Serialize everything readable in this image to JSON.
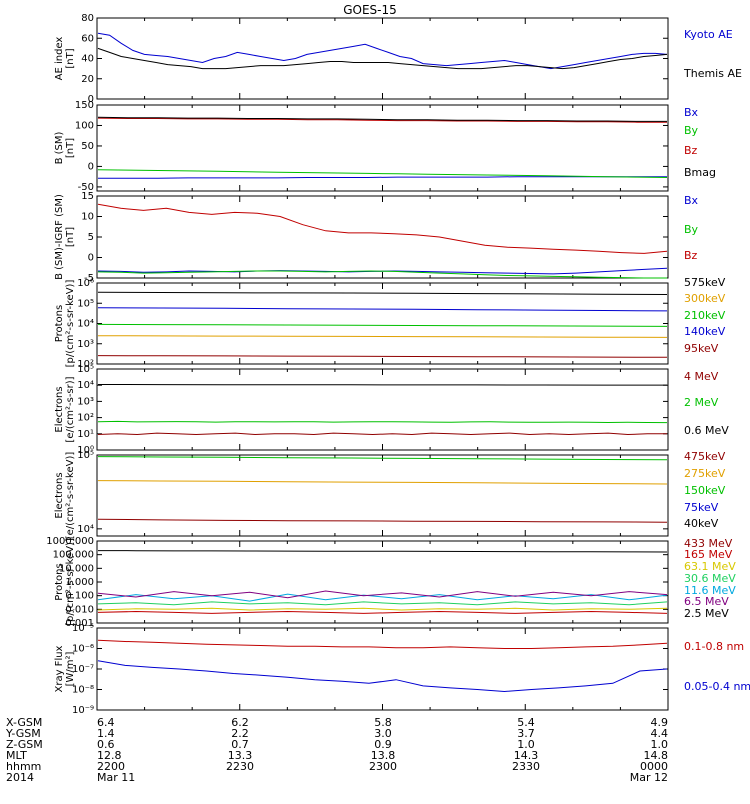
{
  "title": "GOES-15",
  "colors": {
    "black": "#000000",
    "blue": "#0000d0",
    "green": "#00c000",
    "red": "#c00000",
    "orange": "#e0a000",
    "yellow": "#d8c800",
    "cyan": "#00a8e0",
    "purple": "#800080",
    "lightgreen": "#20d060",
    "darkred": "#900000"
  },
  "chart_data": [
    {
      "type": "line",
      "ylabel": "AE index\n[nT]",
      "ylim": [
        0,
        80
      ],
      "yticks": [
        "0",
        "20",
        "40",
        "60",
        "80"
      ],
      "yscale": "linear",
      "series": [
        {
          "name": "Kyoto AE",
          "color": "blue",
          "values": [
            65,
            63,
            55,
            48,
            44,
            43,
            42,
            40,
            38,
            36,
            40,
            42,
            46,
            44,
            42,
            40,
            38,
            40,
            44,
            46,
            48,
            50,
            52,
            54,
            50,
            46,
            42,
            40,
            35,
            34,
            33,
            34,
            35,
            36,
            37,
            38,
            36,
            34,
            32,
            30,
            32,
            34,
            36,
            38,
            40,
            42,
            44,
            45,
            45,
            44
          ]
        },
        {
          "name": "Themis AE",
          "color": "black",
          "values": [
            50,
            46,
            42,
            40,
            38,
            36,
            34,
            33,
            32,
            30,
            30,
            30,
            31,
            32,
            33,
            33,
            33,
            34,
            35,
            36,
            37,
            37,
            36,
            36,
            36,
            36,
            35,
            34,
            33,
            32,
            31,
            30,
            30,
            30,
            31,
            32,
            33,
            33,
            32,
            31,
            30,
            31,
            33,
            35,
            37,
            39,
            40,
            42,
            43,
            44
          ]
        }
      ]
    },
    {
      "type": "line",
      "ylabel": "B (SM)\n[nT]",
      "ylim": [
        -60,
        150
      ],
      "yticks": [
        "-50",
        "0",
        "50",
        "100",
        "150"
      ],
      "yscale": "linear",
      "series": [
        {
          "name": "Bx",
          "color": "blue",
          "values": [
            -29,
            -29,
            -29,
            -28,
            -28,
            -28,
            -28,
            -27,
            -27,
            -27,
            -26,
            -26,
            -26,
            -26,
            -25,
            -25,
            -25,
            -25,
            -25,
            -25
          ]
        },
        {
          "name": "By",
          "color": "green",
          "values": [
            -8,
            -9,
            -10,
            -11,
            -12,
            -13,
            -14,
            -15,
            -16,
            -17,
            -18,
            -19,
            -20,
            -21,
            -22,
            -23,
            -24,
            -25,
            -26,
            -27
          ]
        },
        {
          "name": "Bz",
          "color": "red",
          "values": [
            118,
            117,
            117,
            116,
            116,
            115,
            115,
            114,
            114,
            113,
            112,
            112,
            111,
            111,
            110,
            110,
            109,
            109,
            108,
            108
          ]
        },
        {
          "name": "Bmag",
          "color": "black",
          "values": [
            120,
            119,
            119,
            118,
            118,
            117,
            117,
            116,
            116,
            115,
            114,
            114,
            113,
            113,
            112,
            112,
            111,
            111,
            110,
            110
          ]
        }
      ]
    },
    {
      "type": "line",
      "ylabel": "B (SM)-IGRF (SM)\n[nT]",
      "ylim": [
        -5,
        15
      ],
      "yticks": [
        "-5",
        "0",
        "5",
        "10",
        "15"
      ],
      "yscale": "linear",
      "series": [
        {
          "name": "Bx",
          "color": "blue",
          "values": [
            -3.3,
            -3.4,
            -3.6,
            -3.5,
            -3.3,
            -3.4,
            -3.5,
            -3.3,
            -3.2,
            -3.3,
            -3.4,
            -3.5,
            -3.4,
            -3.3,
            -3.4,
            -3.5,
            -3.6,
            -3.7,
            -3.8,
            -3.9,
            -4.0,
            -3.8,
            -3.5,
            -3.2,
            -2.9,
            -2.6
          ]
        },
        {
          "name": "By",
          "color": "green",
          "values": [
            -3.5,
            -3.6,
            -3.8,
            -3.7,
            -3.6,
            -3.5,
            -3.4,
            -3.3,
            -3.3,
            -3.4,
            -3.5,
            -3.4,
            -3.3,
            -3.4,
            -3.6,
            -3.8,
            -4.0,
            -4.2,
            -4.4,
            -4.5,
            -4.6,
            -4.7,
            -4.8,
            -4.9,
            -5.0,
            -5.0
          ]
        },
        {
          "name": "Bz",
          "color": "red",
          "values": [
            13,
            12,
            11.5,
            12,
            11,
            10.5,
            11,
            10.8,
            10,
            8,
            6.5,
            6,
            6,
            5.8,
            5.5,
            5,
            4,
            3,
            2.5,
            2.3,
            2,
            1.8,
            1.5,
            1.2,
            1,
            1.5
          ]
        }
      ]
    },
    {
      "type": "line",
      "ylabel": "Protons\n[p/(cm²-s-sr-keV)]",
      "ylim": [
        100,
        1000000
      ],
      "yticks": [
        "10²",
        "10³",
        "10⁴",
        "10⁵",
        "10⁶"
      ],
      "yscale": "log",
      "series": [
        {
          "name": "575keV",
          "color": "black",
          "values": [
            350000,
            340000,
            330000,
            325000,
            320000,
            310000,
            300000,
            290000,
            280000,
            270000
          ]
        },
        {
          "name": "300keV",
          "color": "orange",
          "values": [
            2500,
            2450,
            2400,
            2350,
            2300,
            2250,
            2200,
            2150,
            2100,
            2050
          ]
        },
        {
          "name": "210keV",
          "color": "green",
          "values": [
            9000,
            8800,
            8600,
            8400,
            8200,
            8000,
            7800,
            7600,
            7400,
            7200
          ]
        },
        {
          "name": "140keV",
          "color": "blue",
          "values": [
            60000,
            58000,
            56000,
            54000,
            52000,
            50000,
            48000,
            46000,
            44000,
            42000
          ]
        },
        {
          "name": "95keV",
          "color": "darkred",
          "values": [
            260,
            255,
            250,
            245,
            240,
            235,
            230,
            225,
            220,
            215
          ]
        }
      ]
    },
    {
      "type": "line",
      "ylabel": "Electrons\n[e/(cm²-s-sr)]",
      "ylim": [
        1,
        100000
      ],
      "yticks": [
        "10⁰",
        "10¹",
        "10²",
        "10³",
        "10⁴",
        "10⁵"
      ],
      "yscale": "log",
      "series": [
        {
          "name": "4 MeV",
          "color": "darkred",
          "values": [
            9,
            10,
            9,
            11,
            10,
            9,
            10,
            11,
            9,
            10,
            10,
            9,
            11,
            10,
            9,
            10,
            9,
            11,
            10,
            9,
            10,
            11,
            9,
            10,
            9,
            10,
            11,
            9,
            10,
            10
          ]
        },
        {
          "name": "2 MeV",
          "color": "green",
          "values": [
            55,
            58,
            54,
            56,
            57,
            55,
            53,
            56,
            55,
            54,
            56,
            55,
            53,
            54,
            55,
            56,
            54,
            53,
            52,
            54,
            55,
            53,
            52,
            51,
            53,
            52,
            50,
            51,
            50,
            49
          ]
        },
        {
          "name": "0.6 MeV",
          "color": "black",
          "values": [
            11000,
            10900,
            10800,
            10700,
            10600,
            10500,
            10400,
            10300,
            10200,
            10100
          ]
        }
      ]
    },
    {
      "type": "line",
      "ylabel": "Electrons\n[e/(cm²-s-sr-keV)]",
      "ylim": [
        8000,
        100000
      ],
      "yticks": [
        "10⁴",
        "10⁵"
      ],
      "yscale": "log",
      "series": [
        {
          "name": "475keV",
          "color": "darkred",
          "values": [
            13500,
            13200,
            13000,
            12900,
            12800,
            12700,
            12600,
            12500,
            12400,
            12300
          ]
        },
        {
          "name": "275keV",
          "color": "orange",
          "values": [
            45000,
            44500,
            44000,
            43500,
            43000,
            42500,
            42000,
            41500,
            41000,
            40500
          ]
        },
        {
          "name": "150keV",
          "color": "green",
          "values": [
            95000,
            94000,
            93000,
            92000,
            91000,
            90000,
            89000,
            88000,
            87000,
            86000
          ]
        },
        {
          "name": "75keV",
          "color": "blue",
          "values": []
        },
        {
          "name": "40keV",
          "color": "black",
          "values": []
        }
      ]
    },
    {
      "type": "line",
      "ylabel": "Protons\n[p/(cm²-s-sr-keV)]",
      "ylim": [
        0.001,
        1000
      ],
      "yticks": [
        "0.001",
        "0.010",
        "0.100",
        "1.000",
        "10.000",
        "100.000",
        "1000.000"
      ],
      "yscale": "log",
      "series": [
        {
          "name": "433 MeV",
          "color": "darkred",
          "values": []
        },
        {
          "name": "165 MeV",
          "color": "red",
          "values": [
            0.006,
            0.007,
            0.006,
            0.005,
            0.006,
            0.007,
            0.006,
            0.005,
            0.006,
            0.007,
            0.006,
            0.005,
            0.006,
            0.007,
            0.006,
            0.005
          ]
        },
        {
          "name": "63.1 MeV",
          "color": "yellow",
          "values": [
            0.009,
            0.011,
            0.01,
            0.012,
            0.009,
            0.011,
            0.01,
            0.012,
            0.009,
            0.011,
            0.01,
            0.012,
            0.009,
            0.011,
            0.01,
            0.012
          ]
        },
        {
          "name": "30.6 MeV",
          "color": "lightgreen",
          "values": [
            0.025,
            0.03,
            0.022,
            0.035,
            0.025,
            0.03,
            0.022,
            0.035,
            0.025,
            0.03,
            0.022,
            0.035,
            0.025,
            0.03,
            0.022,
            0.035
          ]
        },
        {
          "name": "11.6 MeV",
          "color": "cyan",
          "values": [
            0.05,
            0.12,
            0.06,
            0.1,
            0.04,
            0.13,
            0.05,
            0.11,
            0.06,
            0.12,
            0.05,
            0.1,
            0.06,
            0.12,
            0.05,
            0.11
          ]
        },
        {
          "name": "6.5 MeV",
          "color": "purple",
          "values": [
            0.15,
            0.08,
            0.2,
            0.1,
            0.18,
            0.07,
            0.22,
            0.1,
            0.16,
            0.08,
            0.2,
            0.09,
            0.18,
            0.1,
            0.2,
            0.12
          ]
        },
        {
          "name": "2.5 MeV",
          "color": "black",
          "values": [
            200,
            195,
            190,
            188,
            185,
            183,
            180,
            178,
            175,
            173,
            170,
            168,
            165,
            163,
            160,
            158
          ]
        }
      ]
    },
    {
      "type": "line",
      "ylabel": "Xray Flux\n[W/m²]",
      "ylim": [
        1e-09,
        1e-05
      ],
      "yticks": [
        "10⁻⁹",
        "10⁻⁸",
        "10⁻⁷",
        "10⁻⁶",
        "10⁻⁵"
      ],
      "yscale": "log",
      "series": [
        {
          "name": "0.1-0.8 nm",
          "color": "red",
          "values": [
            2.5e-06,
            2.2e-06,
            2e-06,
            1.8e-06,
            1.6e-06,
            1.5e-06,
            1.4e-06,
            1.3e-06,
            1.3e-06,
            1.2e-06,
            1.2e-06,
            1.1e-06,
            1.1e-06,
            1.2e-06,
            1.1e-06,
            1e-06,
            1e-06,
            1.1e-06,
            1.2e-06,
            1.3e-06,
            1.5e-06,
            1.8e-06
          ]
        },
        {
          "name": "0.05-0.4 nm",
          "color": "blue",
          "values": [
            2.5e-07,
            1.5e-07,
            1.2e-07,
            1e-07,
            8e-08,
            6e-08,
            5e-08,
            4e-08,
            3e-08,
            2.5e-08,
            2e-08,
            3e-08,
            1.5e-08,
            1.2e-08,
            1e-08,
            8e-09,
            1e-08,
            1.2e-08,
            1.5e-08,
            2e-08,
            8e-08,
            1e-07
          ]
        }
      ]
    }
  ],
  "footer": {
    "rows": [
      {
        "label": "X-GSM",
        "values": [
          "6.4",
          "6.2",
          "5.8",
          "5.4",
          "4.9"
        ]
      },
      {
        "label": "Y-GSM",
        "values": [
          "1.4",
          "2.2",
          "3.0",
          "3.7",
          "4.4"
        ]
      },
      {
        "label": "Z-GSM",
        "values": [
          "0.6",
          "0.7",
          "0.9",
          "1.0",
          "1.0"
        ]
      },
      {
        "label": "MLT",
        "values": [
          "12.8",
          "13.3",
          "13.8",
          "14.3",
          "14.8"
        ]
      },
      {
        "label": "hhmm",
        "values": [
          "2200",
          "2230",
          "2300",
          "2330",
          "0000"
        ]
      },
      {
        "label": "2014",
        "values": [
          "Mar 11",
          "",
          "",
          "",
          "Mar 12"
        ]
      }
    ]
  }
}
